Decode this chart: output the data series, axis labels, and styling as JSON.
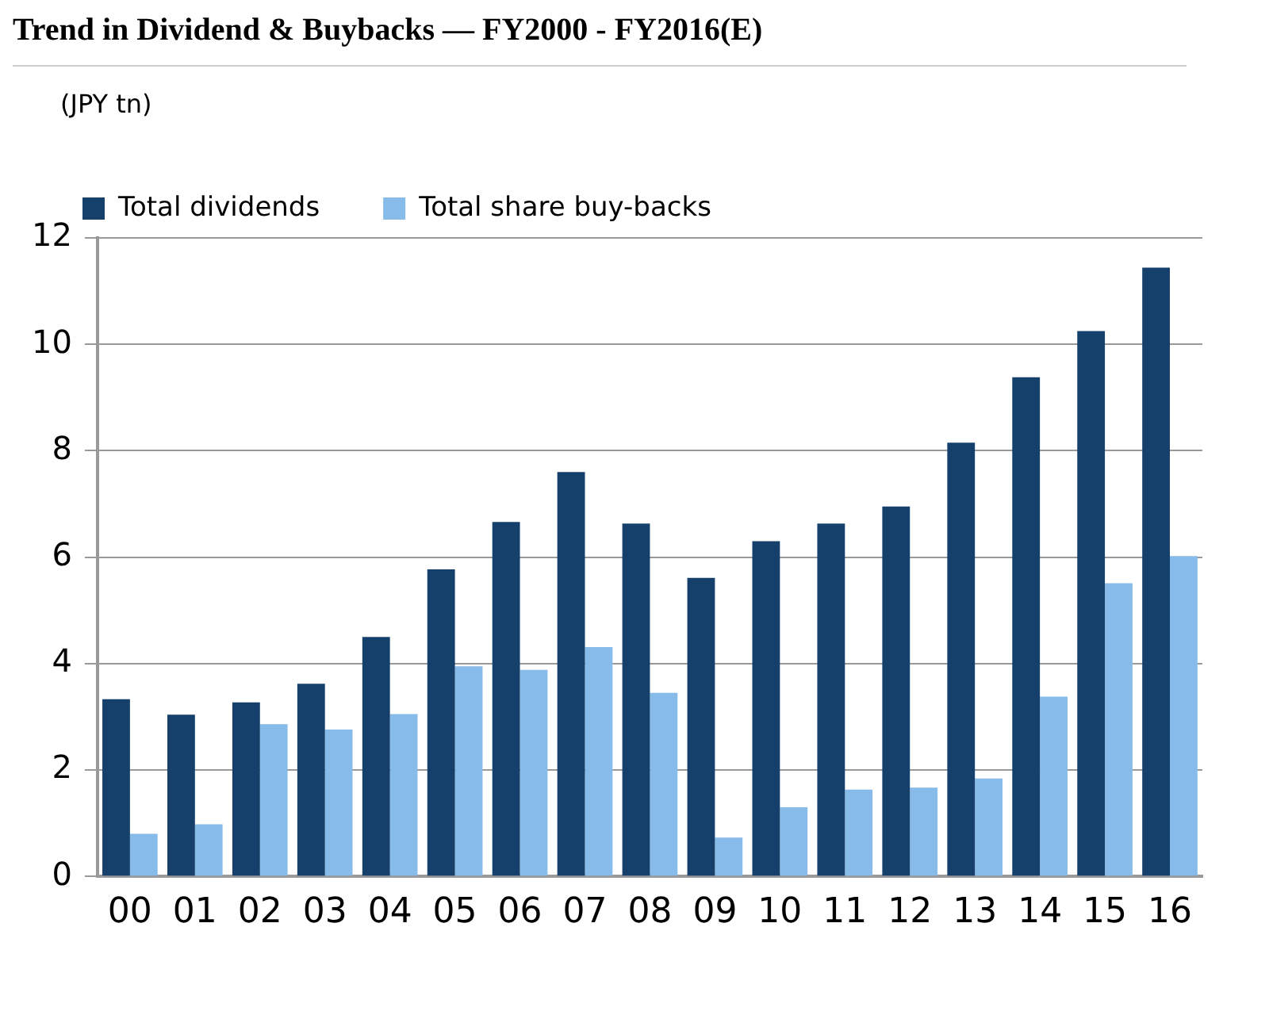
{
  "chart_data": {
    "type": "bar",
    "title": "Trend in Dividend & Buybacks — FY2000 - FY2016(E)",
    "ylabel": "(JPY tn)",
    "categories": [
      "00",
      "01",
      "02",
      "03",
      "04",
      "05",
      "06",
      "07",
      "08",
      "09",
      "10",
      "11",
      "12",
      "13",
      "14",
      "15",
      "16"
    ],
    "series": [
      {
        "name": "Total dividends",
        "color": "#14406b",
        "values": [
          3.33,
          3.04,
          3.27,
          3.62,
          4.5,
          5.77,
          6.66,
          7.6,
          6.63,
          5.61,
          6.3,
          6.63,
          6.95,
          8.15,
          9.38,
          10.25,
          11.44
        ]
      },
      {
        "name": "Total share buy-backs",
        "color": "#87bbea",
        "values": [
          0.8,
          0.98,
          2.86,
          2.76,
          3.05,
          3.95,
          3.88,
          4.31,
          3.45,
          0.73,
          1.3,
          1.63,
          1.67,
          1.84,
          3.38,
          5.51,
          6.02
        ]
      }
    ],
    "ylim": [
      0,
      12
    ],
    "yticks": [
      0,
      2,
      4,
      6,
      8,
      10,
      12
    ],
    "grid": "y",
    "legend": "top left"
  }
}
